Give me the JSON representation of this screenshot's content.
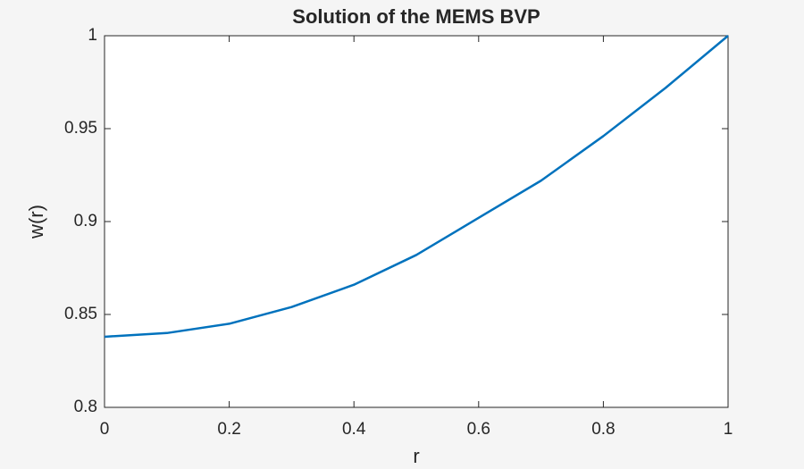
{
  "chart_data": {
    "type": "line",
    "title": "Solution of the MEMS BVP",
    "x_label": "r",
    "y_label": "w(r)",
    "x": [
      0,
      0.1,
      0.2,
      0.3,
      0.4,
      0.5,
      0.6,
      0.7,
      0.8,
      0.9,
      1
    ],
    "series": [
      {
        "name": "w(r)",
        "color": "#0072bd",
        "values": [
          0.838,
          0.84,
          0.845,
          0.854,
          0.866,
          0.882,
          0.902,
          0.922,
          0.946,
          0.972,
          1.0
        ]
      }
    ],
    "xlim": [
      0,
      1
    ],
    "xticks": [
      0,
      0.2,
      0.4,
      0.6,
      0.8,
      1
    ],
    "ylim": [
      0.8,
      1
    ],
    "yticks": [
      0.8,
      0.85,
      0.9,
      0.95,
      1
    ],
    "grid": false
  }
}
